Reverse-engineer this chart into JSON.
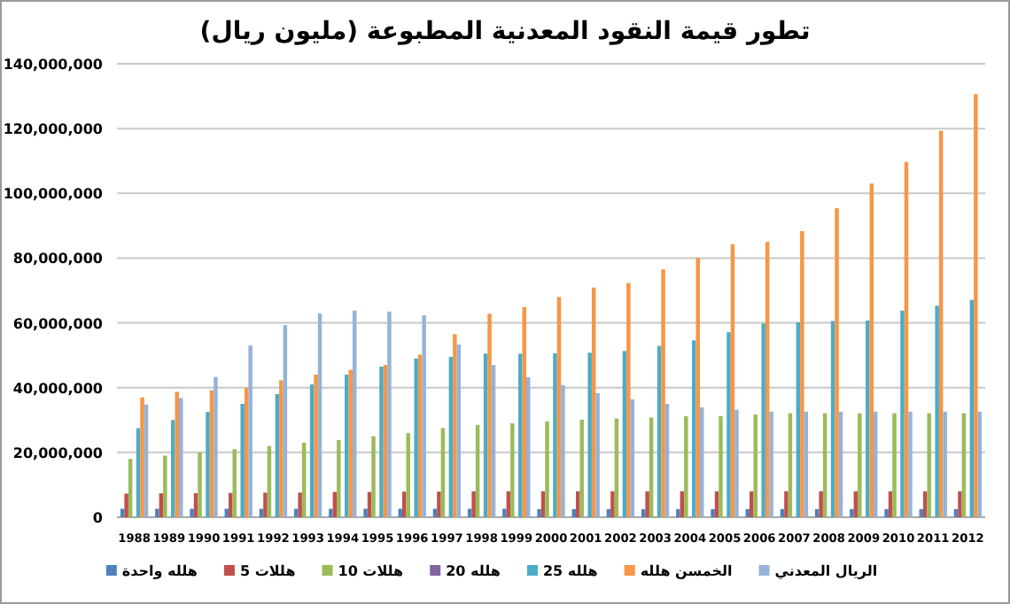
{
  "chart_data": {
    "type": "bar",
    "title": "تطور قيمة النقود المعدنية المطبوعة (مليون ريال)",
    "categories": [
      "1988",
      "1989",
      "1990",
      "1991",
      "1992",
      "1993",
      "1994",
      "1995",
      "1996",
      "1997",
      "1998",
      "1999",
      "2000",
      "2001",
      "2002",
      "2003",
      "2004",
      "2005",
      "2006",
      "2007",
      "2008",
      "2009",
      "2010",
      "2011",
      "2012"
    ],
    "series": [
      {
        "name": "هلله واحدة",
        "color": "#4f81bd",
        "values": [
          2600000,
          2600000,
          2600000,
          2600000,
          2600000,
          2600000,
          2600000,
          2600000,
          2600000,
          2600000,
          2600000,
          2600000,
          2500000,
          2500000,
          2500000,
          2500000,
          2500000,
          2500000,
          2500000,
          2500000,
          2500000,
          2500000,
          2500000,
          2500000,
          2500000
        ]
      },
      {
        "name": "5 هللات",
        "color": "#c0504d",
        "values": [
          7300000,
          7400000,
          7400000,
          7500000,
          7600000,
          7600000,
          7800000,
          7800000,
          7900000,
          7900000,
          8000000,
          8000000,
          8000000,
          8000000,
          8000000,
          8000000,
          8000000,
          8000000,
          8000000,
          8000000,
          8000000,
          8000000,
          8000000,
          8000000,
          8000000
        ]
      },
      {
        "name": "10 هللات",
        "color": "#9bbb59",
        "values": [
          18000000,
          19000000,
          20000000,
          21000000,
          22000000,
          23000000,
          23800000,
          25000000,
          26000000,
          27500000,
          28500000,
          29000000,
          29600000,
          30100000,
          30500000,
          30800000,
          31200000,
          31200000,
          31700000,
          32100000,
          32100000,
          32100000,
          32100000,
          32100000,
          32100000
        ]
      },
      {
        "name": "20 هلله",
        "color": "#8064a2",
        "values": [
          null,
          null,
          null,
          null,
          null,
          null,
          null,
          null,
          null,
          null,
          null,
          null,
          null,
          null,
          null,
          null,
          null,
          null,
          null,
          null,
          null,
          null,
          null,
          null,
          null
        ]
      },
      {
        "name": "25 هلله",
        "color": "#4bacc6",
        "values": [
          27500000,
          30000000,
          32500000,
          35000000,
          38000000,
          41000000,
          44000000,
          46500000,
          49000000,
          49500000,
          50500000,
          50500000,
          50600000,
          50800000,
          51300000,
          52900000,
          54600000,
          57100000,
          59800000,
          60200000,
          60600000,
          60700000,
          63800000,
          65300000,
          67100000
        ]
      },
      {
        "name": "الخمسن هلله",
        "color": "#f79646",
        "values": [
          37000000,
          38700000,
          39200000,
          40000000,
          42300000,
          44000000,
          45500000,
          47000000,
          50200000,
          56500000,
          62800000,
          64900000,
          68000000,
          70900000,
          72300000,
          76500000,
          80100000,
          84300000,
          85000000,
          88300000,
          95400000,
          103000000,
          109700000,
          119300000,
          130600000
        ]
      },
      {
        "name": "الريال المعدني",
        "color": "#95b3d7",
        "values": [
          34800000,
          36800000,
          43300000,
          53000000,
          59300000,
          62900000,
          63800000,
          63500000,
          62300000,
          53300000,
          47000000,
          43200000,
          40800000,
          38300000,
          36400000,
          35000000,
          33900000,
          33200000,
          32600000,
          32600000,
          32600000,
          32600000,
          32600000,
          32600000,
          32600000
        ]
      }
    ],
    "ylim": [
      0,
      140000000
    ],
    "yticks": [
      {
        "value": 0,
        "label": "0"
      },
      {
        "value": 20000000,
        "label": "20,000,000"
      },
      {
        "value": 40000000,
        "label": "40,000,000"
      },
      {
        "value": 60000000,
        "label": "60,000,000"
      },
      {
        "value": 80000000,
        "label": "80,000,000"
      },
      {
        "value": 100000000,
        "label": "100,000,000"
      },
      {
        "value": 120000000,
        "label": "120,000,000"
      },
      {
        "value": 140000000,
        "label": "140,000,000"
      }
    ],
    "grid": "y",
    "legend": "bottom"
  }
}
